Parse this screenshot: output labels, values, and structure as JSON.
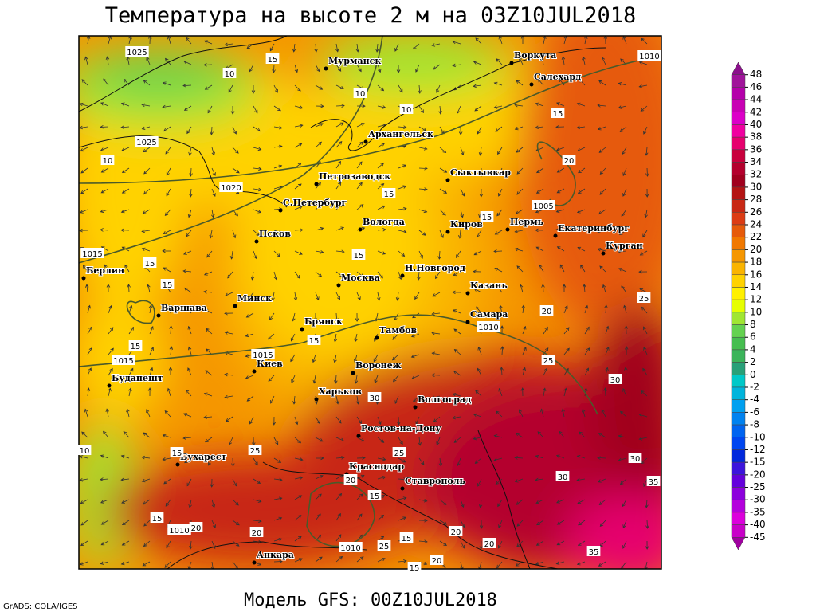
{
  "title": "Температура на высоте 2 м на 03Z10JUL2018",
  "footer": "Модель GFS: 00Z10JUL2018",
  "credit": "GrADS: COLA/IGES",
  "cities": [
    "Мурманск",
    "Воркута",
    "Салехард",
    "Архангельск",
    "Петрозаводск",
    "Сыктывкар",
    "С.Петербург",
    "Вологда",
    "Киров",
    "Пермь",
    "Екатеринбург",
    "Курган",
    "Псков",
    "Берлин",
    "Москва",
    "Н.Новгород",
    "Казань",
    "Минск",
    "Варшава",
    "Самара",
    "Брянск",
    "Тамбов",
    "Киев",
    "Воронеж",
    "Будапешт",
    "Харьков",
    "Волгоград",
    "Ростов-на-Дону",
    "Бухарест",
    "Краснодар",
    "Ставрополь",
    "Анкара"
  ],
  "pressure_labels": [
    1025,
    1025,
    1020,
    1015,
    1015,
    1015,
    1010,
    1005,
    1010,
    1010,
    1010
  ],
  "temperature_labels": [
    15,
    10,
    10,
    10,
    15,
    10,
    15,
    15,
    20,
    15,
    15,
    15,
    20,
    25,
    15,
    15,
    25,
    30,
    30,
    25,
    15,
    25,
    20,
    15,
    30,
    30,
    35,
    15,
    20,
    25,
    15,
    20,
    20,
    20,
    35,
    10,
    15,
    20
  ],
  "colorbar": {
    "levels": [
      48,
      46,
      44,
      42,
      40,
      38,
      36,
      34,
      32,
      30,
      28,
      26,
      24,
      22,
      20,
      18,
      16,
      14,
      12,
      10,
      8,
      6,
      4,
      2,
      0,
      -2,
      -4,
      -6,
      -8,
      -10,
      -12,
      -15,
      -20,
      -25,
      -30,
      -35,
      -40,
      -45
    ],
    "colors": [
      "#8c108c",
      "#a0149a",
      "#b400aa",
      "#c800b4",
      "#dc00c8",
      "#f000a0",
      "#e6006e",
      "#c8003c",
      "#b4002d",
      "#a0001e",
      "#b41414",
      "#c82814",
      "#dc3c14",
      "#e65a0a",
      "#f07800",
      "#f59600",
      "#fab400",
      "#ffd200",
      "#fff000",
      "#e6ff00",
      "#a0e632",
      "#64d250",
      "#46be50",
      "#3cb45a",
      "#28a078",
      "#00c8c8",
      "#00b4dc",
      "#00a0f0",
      "#0082f0",
      "#0064f0",
      "#0046f0",
      "#0028dc",
      "#3c14dc",
      "#6400dc",
      "#8c00dc",
      "#b400dc",
      "#dc00dc",
      "#c800c8",
      "#a000a0"
    ]
  }
}
